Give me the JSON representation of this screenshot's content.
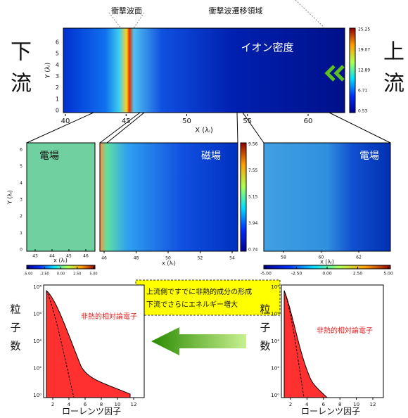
{
  "top_labels": {
    "shock_front": "衝撃波面",
    "transition_region": "衝撃波遷移領域"
  },
  "left_label": [
    "下",
    "流"
  ],
  "right_label": [
    "上",
    "流"
  ],
  "main_panel": {
    "title": "イオン密度",
    "y_axis": "Y (λᵢ)",
    "x_axis": "X (λᵢ)",
    "xticks": [
      "40",
      "45",
      "50",
      "55",
      "60"
    ],
    "yticks": [
      "0",
      "1",
      "2",
      "3",
      "4",
      "5",
      "6"
    ],
    "colorbar_ticks": [
      "0.53",
      "6.71",
      "12.89",
      "19.07",
      "25.25"
    ]
  },
  "panels": [
    {
      "title": "電場",
      "y_axis": "Y (λᵢ)",
      "yticks": [
        "0",
        "1",
        "2",
        "3",
        "4",
        "5",
        "6"
      ],
      "x_axis": "x (λᵢ)",
      "xticks": [
        "43",
        "44",
        "45",
        "46"
      ],
      "colorbar_ticks": [
        "-5.00",
        "-2.50",
        "0.00",
        "2.50",
        "5.00"
      ]
    },
    {
      "title": "磁場",
      "x_axis": "x (λᵢ)",
      "xticks": [
        "46",
        "48",
        "50",
        "52",
        "54"
      ],
      "colorbar_ticks": [
        "0.74",
        "3.94",
        "5.15",
        "7.55",
        "9.56"
      ]
    },
    {
      "title": "電場",
      "x_axis": "x (λᵢ)",
      "xticks": [
        "58",
        "60",
        "62"
      ],
      "colorbar_ticks": [
        "-5.00",
        "-2.50",
        "0.00",
        "2.50",
        "5.00"
      ]
    }
  ],
  "note": [
    "・上流側ですでに非熱的成分の形成",
    "・下流でさらにエネルギー増大"
  ],
  "spectra": [
    {
      "label": "非熱的相対論電子",
      "y_axis": [
        "粒",
        "子",
        "数"
      ],
      "x_axis": "ローレンツ因子",
      "xticks": [
        "2",
        "4",
        "6",
        "8",
        "10",
        "12"
      ],
      "yticks": [
        "10⁰",
        "10²",
        "10⁴",
        "10⁶",
        "10⁸"
      ]
    },
    {
      "label": "非熱的相対論電子",
      "y_axis": [
        "粒",
        "子",
        "数"
      ],
      "x_axis": "ローレンツ因子",
      "xticks": [
        "2",
        "4",
        "6",
        "8",
        "10",
        "12"
      ],
      "yticks": [
        "10⁰",
        "10²",
        "10⁴",
        "10⁶",
        "10⁸"
      ]
    }
  ]
}
